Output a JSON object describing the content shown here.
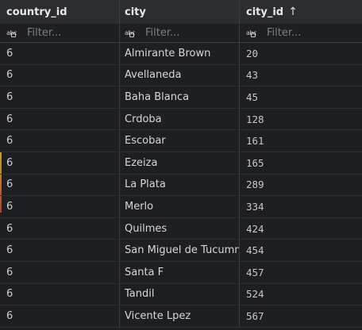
{
  "columns": [
    {
      "label": "country_id"
    },
    {
      "label": "city"
    },
    {
      "label": "city_id",
      "sort_icon": "arrow-up-icon",
      "sort_glyph": "↑"
    }
  ],
  "filters": {
    "placeholder": "Filter..."
  },
  "rows": [
    {
      "country_id": "6",
      "city": "Almirante Brown",
      "city_id": "20"
    },
    {
      "country_id": "6",
      "city": "Avellaneda",
      "city_id": "43"
    },
    {
      "country_id": "6",
      "city": "Baha Blanca",
      "city_id": "45"
    },
    {
      "country_id": "6",
      "city": "Crdoba",
      "city_id": "128"
    },
    {
      "country_id": "6",
      "city": "Escobar",
      "city_id": "161"
    },
    {
      "country_id": "6",
      "city": "Ezeiza",
      "city_id": "165"
    },
    {
      "country_id": "6",
      "city": "La Plata",
      "city_id": "289"
    },
    {
      "country_id": "6",
      "city": "Merlo",
      "city_id": "334"
    },
    {
      "country_id": "6",
      "city": "Quilmes",
      "city_id": "424"
    },
    {
      "country_id": "6",
      "city": "San Miguel de Tucumn",
      "city_id": "454"
    },
    {
      "country_id": "6",
      "city": "Santa F",
      "city_id": "457"
    },
    {
      "country_id": "6",
      "city": "Tandil",
      "city_id": "524"
    },
    {
      "country_id": "6",
      "city": "Vicente Lpez",
      "city_id": "567"
    }
  ],
  "colors": {
    "background": "#1e1f22",
    "header": "#2b2d30",
    "marker_top": "#c9a227",
    "marker_bottom": "#b0412a"
  }
}
